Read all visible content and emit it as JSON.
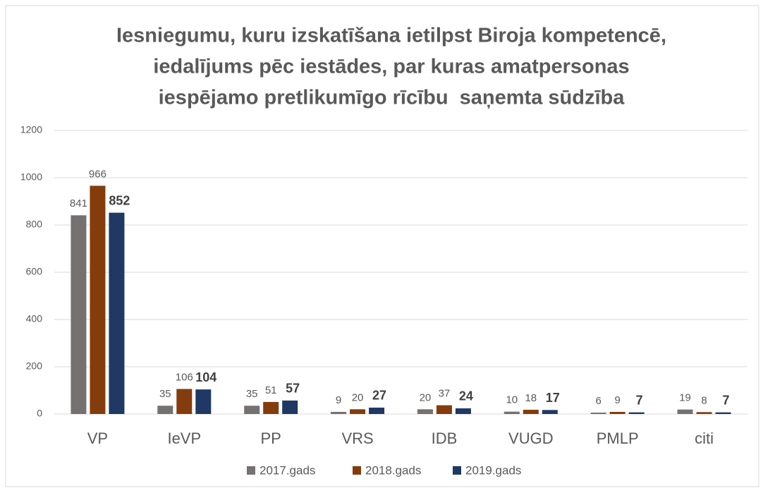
{
  "chart_data": {
    "type": "bar",
    "title": [
      "Iesniegumu, kuru izskatīšana ietilpst Biroja kompetencē,",
      "iedalījums pēc iestādes, par kuras amatpersonas",
      "iespējamo pretlikumīgo rīcību  saņemta sūdzība"
    ],
    "categories": [
      "VP",
      "IeVP",
      "PP",
      "VRS",
      "IDB",
      "VUGD",
      "PMLP",
      "citi"
    ],
    "series": [
      {
        "name": "2017.gads",
        "color": "#767171",
        "values": [
          841,
          35,
          35,
          9,
          20,
          10,
          6,
          19
        ]
      },
      {
        "name": "2018.gads",
        "color": "#843c0c",
        "values": [
          966,
          106,
          51,
          20,
          37,
          18,
          9,
          8
        ]
      },
      {
        "name": "2019.gads",
        "color": "#1f3864",
        "values": [
          852,
          104,
          57,
          27,
          24,
          17,
          7,
          7
        ]
      }
    ],
    "ylim": [
      0,
      1200
    ],
    "yticks": [
      0,
      200,
      400,
      600,
      800,
      1000,
      1200
    ],
    "grid": true,
    "legend": "bottom"
  }
}
